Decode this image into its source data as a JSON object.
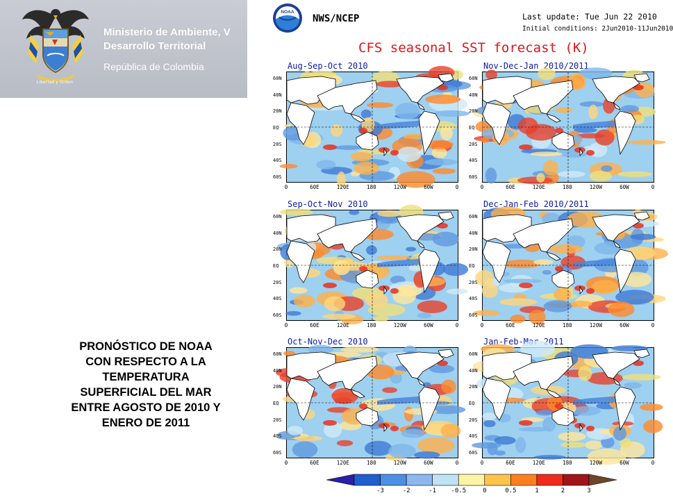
{
  "banner": {
    "ministry_line1": "Ministerio de Ambiente, V",
    "ministry_line2": "Desarrollo Territorial",
    "republic": "República de Colombia",
    "coat_caption": "Libertad y Orden"
  },
  "caption": {
    "lines": [
      "PRONÓSTICO DE NOAA",
      "CON RESPECTO A LA",
      "TEMPERATURA",
      "SUPERFICIAL DEL MAR",
      "ENTRE AGOSTO DE 2010 Y",
      "ENERO DE 2011"
    ]
  },
  "figure": {
    "source": "NWS/NCEP",
    "last_update": "Last update: Tue Jun 22 2010",
    "initial_conditions": "Initial conditions: 2Jun2010-11Jun2010",
    "title": "CFS seasonal SST forecast (K)",
    "panels": [
      {
        "title": "Aug-Sep-Oct 2010"
      },
      {
        "title": "Nov-Dec-Jan 2010/2011"
      },
      {
        "title": "Sep-Oct-Nov 2010"
      },
      {
        "title": "Dec-Jan-Feb 2010/2011"
      },
      {
        "title": "Oct-Nov-Dec 2010"
      },
      {
        "title": "Jan-Feb-Mar 2011"
      }
    ],
    "lat_labels": [
      "60N",
      "40N",
      "20N",
      "EQ",
      "20S",
      "40S",
      "60S"
    ],
    "lon_labels": [
      "0",
      "60E",
      "120E",
      "180",
      "120W",
      "60W",
      "0"
    ],
    "colorbar": {
      "labels": [
        "-3",
        "-2",
        "-1",
        "-0.5",
        "0",
        "0.5",
        "1",
        "2",
        "3"
      ],
      "colors": [
        "#2a1fa8",
        "#1f5fd0",
        "#4d8fe6",
        "#8cb8ef",
        "#bfe2f5",
        "#fff3a6",
        "#ffc34a",
        "#ff7f1e",
        "#ef2b1c",
        "#a0141a",
        "#70442a"
      ]
    }
  },
  "colors": {
    "banner_bg": "#c0c4cc",
    "title_red": "#e0161a",
    "panel_title_blue": "#0a1aa8",
    "ocean_base": "#9ed0f0",
    "land": "#ffffff"
  }
}
